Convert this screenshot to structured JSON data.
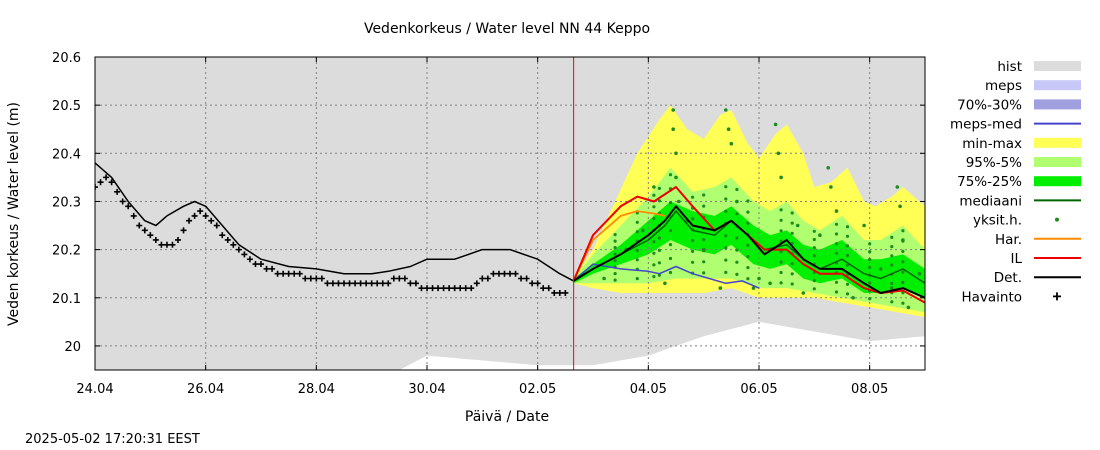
{
  "chart_data": {
    "type": "area",
    "title": "Vedenkorkeus / Water level   NN 44 Keppo",
    "xlabel": "Päivä / Date",
    "ylabel": "Veden korkeus / Water level (m)",
    "timestamp": "2025-05-02 17:20:31 EEST",
    "x_range_days": [
      0,
      15
    ],
    "ylim": [
      19.95,
      20.6
    ],
    "grid": true,
    "legend_position": "right",
    "forecast_start_day": 8.65,
    "x_ticks": [
      {
        "day": 0,
        "label": "24.04"
      },
      {
        "day": 2,
        "label": "26.04"
      },
      {
        "day": 4,
        "label": "28.04"
      },
      {
        "day": 6,
        "label": "30.04"
      },
      {
        "day": 8,
        "label": "02.05"
      },
      {
        "day": 10,
        "label": "04.05"
      },
      {
        "day": 12,
        "label": "06.05"
      },
      {
        "day": 14,
        "label": "08.05"
      }
    ],
    "y_ticks": [
      {
        "value": 20.0,
        "label": "20"
      },
      {
        "value": 20.1,
        "label": "20.1"
      },
      {
        "value": 20.2,
        "label": "20.2"
      },
      {
        "value": 20.3,
        "label": "20.3"
      },
      {
        "value": 20.4,
        "label": "20.4"
      },
      {
        "value": 20.5,
        "label": "20.5"
      },
      {
        "value": 20.6,
        "label": "20.6"
      }
    ],
    "colors": {
      "hist": "#dcdcdc",
      "meps": "#c8c8f8",
      "p70_30": "#a0a0e0",
      "meps_med": "#4444cc",
      "minmax": "#ffff55",
      "p95_5": "#b0ff70",
      "p75_25": "#00ee00",
      "median": "#006400",
      "yksit": "#1e8c1e",
      "har": "#ff8c00",
      "il": "#ee0000",
      "det": "#000000",
      "havainto": "#000000",
      "now": "#ff0000"
    },
    "legend": [
      {
        "label": "hist",
        "key": "hist",
        "kind": "box"
      },
      {
        "label": "meps",
        "key": "meps",
        "kind": "box"
      },
      {
        "label": "70%-30%",
        "key": "p70_30",
        "kind": "box"
      },
      {
        "label": "meps-med",
        "key": "meps_med",
        "kind": "line"
      },
      {
        "label": "min-max",
        "key": "minmax",
        "kind": "box"
      },
      {
        "label": "95%-5%",
        "key": "p95_5",
        "kind": "box"
      },
      {
        "label": "75%-25%",
        "key": "p75_25",
        "kind": "box"
      },
      {
        "label": "mediaani",
        "key": "median",
        "kind": "line"
      },
      {
        "label": "yksit.h.",
        "key": "yksit",
        "kind": "dot"
      },
      {
        "label": "Har.",
        "key": "har",
        "kind": "line"
      },
      {
        "label": "IL",
        "key": "il",
        "kind": "line"
      },
      {
        "label": "Det.",
        "key": "det",
        "kind": "line"
      },
      {
        "label": "Havainto",
        "key": "havainto",
        "kind": "plus"
      }
    ],
    "hist_lower": [
      [
        0,
        19.93
      ],
      [
        5.5,
        19.95
      ],
      [
        6,
        19.98
      ],
      [
        8,
        19.96
      ],
      [
        9,
        19.96
      ],
      [
        10,
        19.98
      ],
      [
        11,
        20.02
      ],
      [
        12,
        20.05
      ],
      [
        13,
        20.03
      ],
      [
        14,
        20.01
      ],
      [
        15,
        20.02
      ]
    ],
    "havainto": [
      [
        0,
        20.33
      ],
      [
        0.1,
        20.34
      ],
      [
        0.2,
        20.35
      ],
      [
        0.3,
        20.34
      ],
      [
        0.4,
        20.32
      ],
      [
        0.5,
        20.3
      ],
      [
        0.6,
        20.29
      ],
      [
        0.7,
        20.27
      ],
      [
        0.8,
        20.25
      ],
      [
        0.9,
        20.24
      ],
      [
        1,
        20.23
      ],
      [
        1.1,
        20.22
      ],
      [
        1.2,
        20.21
      ],
      [
        1.3,
        20.21
      ],
      [
        1.4,
        20.21
      ],
      [
        1.5,
        20.22
      ],
      [
        1.6,
        20.24
      ],
      [
        1.7,
        20.26
      ],
      [
        1.8,
        20.27
      ],
      [
        1.9,
        20.28
      ],
      [
        2,
        20.27
      ],
      [
        2.1,
        20.26
      ],
      [
        2.2,
        20.25
      ],
      [
        2.3,
        20.23
      ],
      [
        2.4,
        20.22
      ],
      [
        2.5,
        20.21
      ],
      [
        2.6,
        20.2
      ],
      [
        2.7,
        20.19
      ],
      [
        2.8,
        20.18
      ],
      [
        2.9,
        20.17
      ],
      [
        3,
        20.17
      ],
      [
        3.1,
        20.16
      ],
      [
        3.2,
        20.16
      ],
      [
        3.3,
        20.15
      ],
      [
        3.4,
        20.15
      ],
      [
        3.5,
        20.15
      ],
      [
        3.6,
        20.15
      ],
      [
        3.7,
        20.15
      ],
      [
        3.8,
        20.14
      ],
      [
        3.9,
        20.14
      ],
      [
        4,
        20.14
      ],
      [
        4.1,
        20.14
      ],
      [
        4.2,
        20.13
      ],
      [
        4.3,
        20.13
      ],
      [
        4.4,
        20.13
      ],
      [
        4.5,
        20.13
      ],
      [
        4.6,
        20.13
      ],
      [
        4.7,
        20.13
      ],
      [
        4.8,
        20.13
      ],
      [
        4.9,
        20.13
      ],
      [
        5,
        20.13
      ],
      [
        5.1,
        20.13
      ],
      [
        5.2,
        20.13
      ],
      [
        5.3,
        20.13
      ],
      [
        5.4,
        20.14
      ],
      [
        5.5,
        20.14
      ],
      [
        5.6,
        20.14
      ],
      [
        5.7,
        20.13
      ],
      [
        5.8,
        20.13
      ],
      [
        5.9,
        20.12
      ],
      [
        6,
        20.12
      ],
      [
        6.1,
        20.12
      ],
      [
        6.2,
        20.12
      ],
      [
        6.3,
        20.12
      ],
      [
        6.4,
        20.12
      ],
      [
        6.5,
        20.12
      ],
      [
        6.6,
        20.12
      ],
      [
        6.7,
        20.12
      ],
      [
        6.8,
        20.12
      ],
      [
        6.9,
        20.13
      ],
      [
        7,
        20.14
      ],
      [
        7.1,
        20.14
      ],
      [
        7.2,
        20.15
      ],
      [
        7.3,
        20.15
      ],
      [
        7.4,
        20.15
      ],
      [
        7.5,
        20.15
      ],
      [
        7.6,
        20.15
      ],
      [
        7.7,
        20.14
      ],
      [
        7.8,
        20.14
      ],
      [
        7.9,
        20.13
      ],
      [
        8,
        20.13
      ],
      [
        8.1,
        20.12
      ],
      [
        8.2,
        20.12
      ],
      [
        8.3,
        20.11
      ],
      [
        8.4,
        20.11
      ],
      [
        8.5,
        20.11
      ]
    ],
    "det_hist": [
      [
        0,
        20.38
      ],
      [
        0.3,
        20.35
      ],
      [
        0.6,
        20.3
      ],
      [
        0.9,
        20.26
      ],
      [
        1.1,
        20.25
      ],
      [
        1.3,
        20.27
      ],
      [
        1.6,
        20.29
      ],
      [
        1.8,
        20.3
      ],
      [
        2,
        20.29
      ],
      [
        2.3,
        20.25
      ],
      [
        2.6,
        20.21
      ],
      [
        3,
        20.18
      ],
      [
        3.5,
        20.165
      ],
      [
        4,
        20.16
      ],
      [
        4.5,
        20.15
      ],
      [
        5,
        20.15
      ],
      [
        5.3,
        20.155
      ],
      [
        5.7,
        20.165
      ],
      [
        6,
        20.18
      ],
      [
        6.5,
        20.18
      ],
      [
        7,
        20.2
      ],
      [
        7.5,
        20.2
      ],
      [
        8,
        20.18
      ],
      [
        8.4,
        20.15
      ],
      [
        8.65,
        20.135
      ]
    ],
    "minmax_upper": [
      [
        8.65,
        20.14
      ],
      [
        9,
        20.2
      ],
      [
        9.4,
        20.3
      ],
      [
        9.8,
        20.4
      ],
      [
        10.2,
        20.47
      ],
      [
        10.4,
        20.5
      ],
      [
        10.7,
        20.45
      ],
      [
        11,
        20.43
      ],
      [
        11.3,
        20.48
      ],
      [
        11.5,
        20.49
      ],
      [
        11.8,
        20.42
      ],
      [
        12,
        20.39
      ],
      [
        12.3,
        20.44
      ],
      [
        12.5,
        20.46
      ],
      [
        12.8,
        20.4
      ],
      [
        13,
        20.33
      ],
      [
        13.3,
        20.34
      ],
      [
        13.6,
        20.37
      ],
      [
        13.9,
        20.3
      ],
      [
        14.1,
        20.29
      ],
      [
        14.4,
        20.31
      ],
      [
        14.6,
        20.33
      ],
      [
        14.8,
        20.31
      ],
      [
        15,
        20.29
      ]
    ],
    "minmax_lower": [
      [
        8.65,
        20.13
      ],
      [
        9,
        20.12
      ],
      [
        9.5,
        20.11
      ],
      [
        10,
        20.11
      ],
      [
        10.5,
        20.11
      ],
      [
        11,
        20.11
      ],
      [
        11.5,
        20.12
      ],
      [
        12,
        20.1
      ],
      [
        12.5,
        20.1
      ],
      [
        13,
        20.1
      ],
      [
        13.5,
        20.09
      ],
      [
        14,
        20.08
      ],
      [
        14.5,
        20.07
      ],
      [
        15,
        20.06
      ]
    ],
    "p95_upper": [
      [
        8.65,
        20.14
      ],
      [
        9,
        20.19
      ],
      [
        9.5,
        20.25
      ],
      [
        10,
        20.31
      ],
      [
        10.4,
        20.37
      ],
      [
        10.8,
        20.32
      ],
      [
        11.2,
        20.33
      ],
      [
        11.5,
        20.35
      ],
      [
        11.9,
        20.3
      ],
      [
        12.2,
        20.28
      ],
      [
        12.5,
        20.3
      ],
      [
        12.8,
        20.26
      ],
      [
        13.1,
        20.24
      ],
      [
        13.5,
        20.27
      ],
      [
        13.9,
        20.22
      ],
      [
        14.2,
        20.22
      ],
      [
        14.6,
        20.25
      ],
      [
        15,
        20.2
      ]
    ],
    "p95_lower": [
      [
        8.65,
        20.13
      ],
      [
        9,
        20.13
      ],
      [
        9.5,
        20.13
      ],
      [
        10,
        20.13
      ],
      [
        10.5,
        20.14
      ],
      [
        11,
        20.14
      ],
      [
        11.5,
        20.14
      ],
      [
        12,
        20.12
      ],
      [
        12.5,
        20.12
      ],
      [
        13,
        20.11
      ],
      [
        13.5,
        20.1
      ],
      [
        14,
        20.09
      ],
      [
        14.5,
        20.08
      ],
      [
        15,
        20.07
      ]
    ],
    "p75_upper": [
      [
        8.65,
        20.14
      ],
      [
        9,
        20.17
      ],
      [
        9.5,
        20.21
      ],
      [
        10,
        20.26
      ],
      [
        10.4,
        20.3
      ],
      [
        10.8,
        20.28
      ],
      [
        11.2,
        20.27
      ],
      [
        11.5,
        20.29
      ],
      [
        11.9,
        20.25
      ],
      [
        12.2,
        20.23
      ],
      [
        12.5,
        20.24
      ],
      [
        12.8,
        20.21
      ],
      [
        13.1,
        20.2
      ],
      [
        13.5,
        20.22
      ],
      [
        13.9,
        20.18
      ],
      [
        14.2,
        20.18
      ],
      [
        14.6,
        20.19
      ],
      [
        15,
        20.16
      ]
    ],
    "p75_lower": [
      [
        8.65,
        20.13
      ],
      [
        9,
        20.15
      ],
      [
        9.5,
        20.17
      ],
      [
        10,
        20.19
      ],
      [
        10.4,
        20.22
      ],
      [
        10.8,
        20.2
      ],
      [
        11.2,
        20.19
      ],
      [
        11.5,
        20.21
      ],
      [
        11.9,
        20.17
      ],
      [
        12.2,
        20.16
      ],
      [
        12.5,
        20.17
      ],
      [
        12.8,
        20.14
      ],
      [
        13.1,
        20.13
      ],
      [
        13.5,
        20.14
      ],
      [
        13.9,
        20.11
      ],
      [
        14.2,
        20.11
      ],
      [
        14.6,
        20.12
      ],
      [
        15,
        20.1
      ]
    ],
    "median": [
      [
        8.65,
        20.135
      ],
      [
        9,
        20.16
      ],
      [
        9.5,
        20.19
      ],
      [
        10,
        20.22
      ],
      [
        10.3,
        20.25
      ],
      [
        10.5,
        20.28
      ],
      [
        10.8,
        20.24
      ],
      [
        11.2,
        20.23
      ],
      [
        11.5,
        20.26
      ],
      [
        11.8,
        20.23
      ],
      [
        12.1,
        20.2
      ],
      [
        12.5,
        20.21
      ],
      [
        12.8,
        20.18
      ],
      [
        13.1,
        20.16
      ],
      [
        13.5,
        20.18
      ],
      [
        13.9,
        20.15
      ],
      [
        14.2,
        20.14
      ],
      [
        14.6,
        20.16
      ],
      [
        15,
        20.13
      ]
    ],
    "meps_med": [
      [
        8.65,
        20.135
      ],
      [
        9,
        20.17
      ],
      [
        9.5,
        20.16
      ],
      [
        10,
        20.155
      ],
      [
        10.2,
        20.15
      ],
      [
        10.5,
        20.165
      ],
      [
        10.8,
        20.15
      ],
      [
        11.1,
        20.14
      ],
      [
        11.4,
        20.13
      ],
      [
        11.7,
        20.135
      ],
      [
        12,
        20.12
      ]
    ],
    "det_forecast": [
      [
        8.65,
        20.135
      ],
      [
        9,
        20.16
      ],
      [
        9.5,
        20.19
      ],
      [
        10,
        20.23
      ],
      [
        10.3,
        20.26
      ],
      [
        10.5,
        20.29
      ],
      [
        10.8,
        20.25
      ],
      [
        11.2,
        20.24
      ],
      [
        11.5,
        20.26
      ],
      [
        11.8,
        20.23
      ],
      [
        12.1,
        20.19
      ],
      [
        12.5,
        20.22
      ],
      [
        12.8,
        20.18
      ],
      [
        13.1,
        20.16
      ],
      [
        13.5,
        20.16
      ],
      [
        13.9,
        20.13
      ],
      [
        14.2,
        20.11
      ],
      [
        14.6,
        20.12
      ],
      [
        15,
        20.1
      ]
    ],
    "il_forecast": [
      [
        8.65,
        20.135
      ],
      [
        9,
        20.23
      ],
      [
        9.5,
        20.29
      ],
      [
        9.8,
        20.31
      ],
      [
        10.1,
        20.3
      ],
      [
        10.5,
        20.33
      ],
      [
        10.8,
        20.29
      ],
      [
        11.2,
        20.24
      ],
      [
        11.5,
        20.26
      ],
      [
        11.8,
        20.23
      ],
      [
        12.1,
        20.2
      ],
      [
        12.5,
        20.2
      ],
      [
        12.8,
        20.17
      ],
      [
        13.1,
        20.15
      ],
      [
        13.5,
        20.15
      ],
      [
        13.9,
        20.12
      ],
      [
        14.2,
        20.11
      ],
      [
        14.6,
        20.115
      ],
      [
        15,
        20.09
      ]
    ],
    "har_forecast": [
      [
        8.65,
        20.135
      ],
      [
        9,
        20.22
      ],
      [
        9.5,
        20.27
      ],
      [
        9.8,
        20.28
      ],
      [
        10.1,
        20.275
      ],
      [
        10.3,
        20.27
      ]
    ],
    "yksit_columns": [
      9.4,
      9.8,
      10.1,
      10.2,
      10.4,
      10.8,
      11.0,
      11.4,
      11.6,
      11.8,
      12.4,
      12.6,
      13.0,
      13.4,
      13.6,
      14.0,
      14.4,
      14.6
    ],
    "yksit_points": [
      [
        10.45,
        20.49
      ],
      [
        10.45,
        20.45
      ],
      [
        10.5,
        20.4
      ],
      [
        10.5,
        20.35
      ],
      [
        10.55,
        20.3
      ],
      [
        11.4,
        20.49
      ],
      [
        11.45,
        20.45
      ],
      [
        11.5,
        20.42
      ],
      [
        12.3,
        20.46
      ],
      [
        12.35,
        20.4
      ],
      [
        12.4,
        20.35
      ],
      [
        13.25,
        20.37
      ],
      [
        13.3,
        20.33
      ],
      [
        14.5,
        20.33
      ],
      [
        14.55,
        20.29
      ],
      [
        9.2,
        20.14
      ],
      [
        9.6,
        20.2
      ],
      [
        9.9,
        20.24
      ],
      [
        10.1,
        20.33
      ],
      [
        10.7,
        20.26
      ],
      [
        11.0,
        20.2
      ],
      [
        11.6,
        20.3
      ],
      [
        11.9,
        20.12
      ],
      [
        12.0,
        20.14
      ],
      [
        12.7,
        20.25
      ],
      [
        12.8,
        20.11
      ],
      [
        13.1,
        20.23
      ],
      [
        13.4,
        20.28
      ],
      [
        13.7,
        20.1
      ],
      [
        13.9,
        20.25
      ],
      [
        14.2,
        20.16
      ],
      [
        14.4,
        20.12
      ],
      [
        14.6,
        20.22
      ],
      [
        14.7,
        20.08
      ],
      [
        14.9,
        20.15
      ],
      [
        10.3,
        20.13
      ],
      [
        11.3,
        20.12
      ],
      [
        12.2,
        20.13
      ]
    ]
  }
}
